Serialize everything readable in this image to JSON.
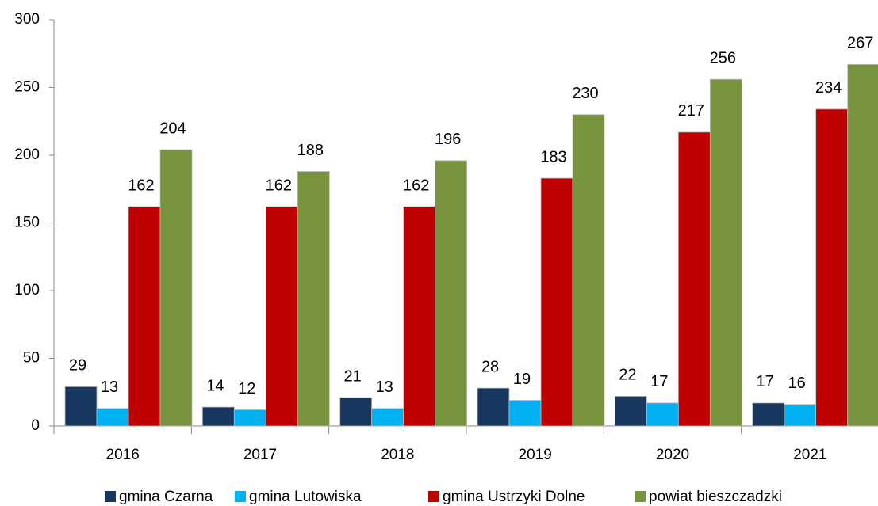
{
  "chart_data": {
    "type": "bar",
    "categories": [
      "2016",
      "2017",
      "2018",
      "2019",
      "2020",
      "2021"
    ],
    "series": [
      {
        "name": "gmina Czarna",
        "color": "#17375e",
        "values": [
          29,
          14,
          21,
          28,
          22,
          17
        ]
      },
      {
        "name": "gmina  Lutowiska",
        "color": "#00b0f0",
        "values": [
          13,
          12,
          13,
          19,
          17,
          16
        ]
      },
      {
        "name": "gmina Ustrzyki Dolne",
        "color": "#c00000",
        "values": [
          162,
          162,
          162,
          183,
          217,
          234
        ]
      },
      {
        "name": "powiat bieszczadzki",
        "color": "#77933c",
        "values": [
          204,
          188,
          196,
          230,
          256,
          267
        ]
      }
    ],
    "ylim": [
      0,
      300
    ],
    "yticks": [
      0,
      50,
      100,
      150,
      200,
      250,
      300
    ],
    "grid": false,
    "legend": "bottom"
  }
}
